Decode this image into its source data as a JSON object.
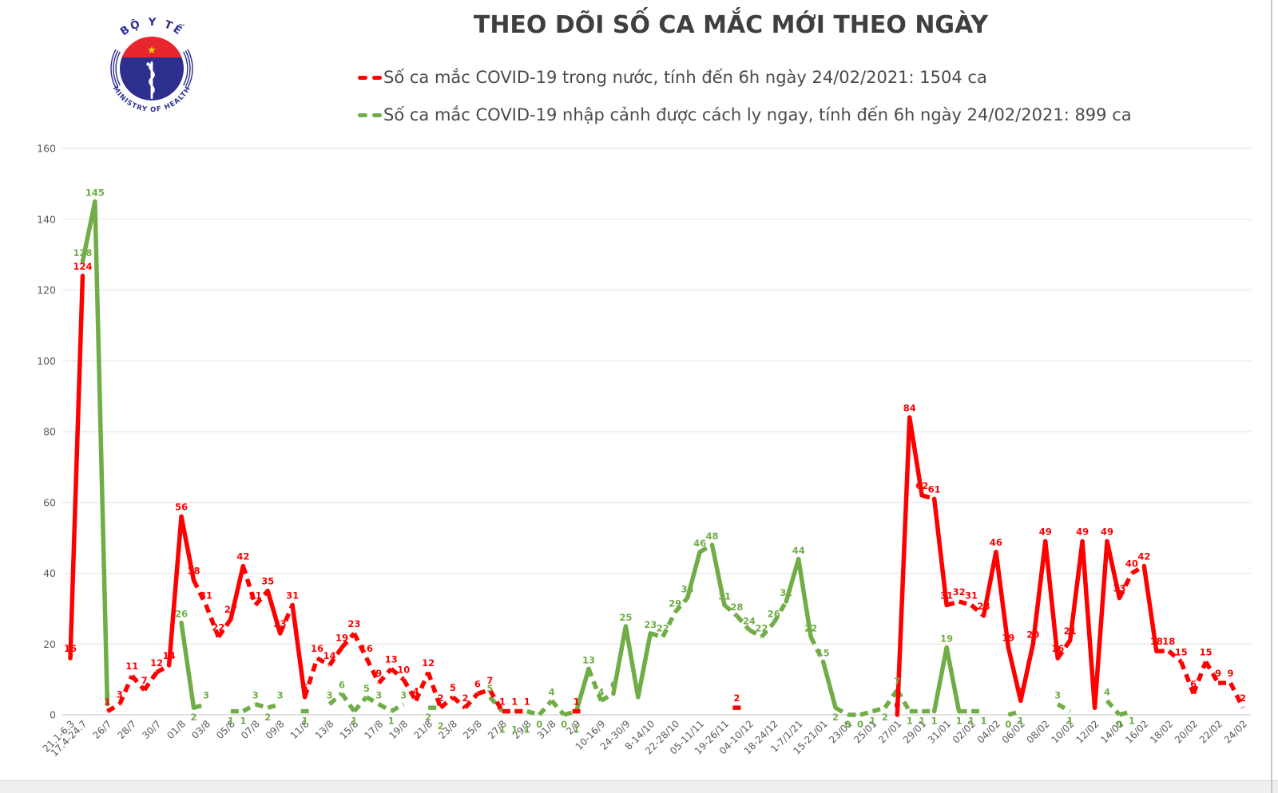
{
  "logo": {
    "top_text": "BỘ Y TẾ",
    "bottom_text": "MINISTRY OF HEALTH"
  },
  "chart_data": {
    "type": "line",
    "title": "THEO DÕI SỐ CA MẮC MỚI THEO NGÀY",
    "ylim": [
      0,
      160
    ],
    "yticks": [
      0,
      20,
      40,
      60,
      80,
      100,
      120,
      140,
      160
    ],
    "grid": true,
    "legend_position": "top-center",
    "categories": [
      "21.1-6.3",
      "17.4-24.7",
      "",
      "26/7",
      "",
      "28/7",
      "",
      "30/7",
      "",
      "01/8",
      "",
      "03/8",
      "",
      "05/8",
      "",
      "07/8",
      "",
      "09/8",
      "",
      "11/8",
      "",
      "13/8",
      "",
      "15/8",
      "",
      "17/8",
      "",
      "19/8",
      "",
      "21/8",
      "",
      "23/8",
      "",
      "25/8",
      "",
      "27/8",
      "",
      "29/8",
      "",
      "31/8",
      "",
      "2/9",
      "",
      "10-16/9",
      "",
      "24-30/9",
      "",
      "8-14/10",
      "",
      "22-28/10",
      "",
      "05-11/11",
      "",
      "19-26/11",
      "",
      "04-10/12",
      "",
      "18-24/12",
      "",
      "1-7/1/21",
      "",
      "15-21/01",
      "",
      "23/01",
      "",
      "25/01",
      "",
      "27/01",
      "",
      "29/01",
      "",
      "31/01",
      "",
      "02/02",
      "",
      "04/02",
      "",
      "06/02",
      "",
      "08/02",
      "",
      "10/02",
      "",
      "12/02",
      "",
      "14/02",
      "",
      "16/02",
      "",
      "18/02",
      "",
      "20/02",
      "",
      "22/02",
      "",
      "24/02"
    ],
    "series": [
      {
        "name": "Số ca mắc COVID-19 trong nước, tính đến 6h ngày 24/02/2021: 1504 ca",
        "color": "#ff0000",
        "values": [
          16,
          124,
          null,
          1,
          3,
          11,
          7,
          12,
          14,
          56,
          38,
          31,
          22,
          27,
          42,
          31,
          35,
          23,
          31,
          5,
          16,
          14,
          19,
          23,
          16,
          9,
          13,
          10,
          4,
          12,
          2,
          5,
          2,
          6,
          7,
          1,
          1,
          1,
          null,
          null,
          null,
          1,
          null,
          null,
          null,
          null,
          null,
          null,
          null,
          null,
          null,
          null,
          null,
          null,
          2,
          null,
          null,
          null,
          null,
          null,
          null,
          null,
          null,
          null,
          null,
          null,
          null,
          0,
          84,
          62,
          61,
          31,
          32,
          31,
          28,
          46,
          19,
          4,
          20,
          49,
          16,
          21,
          49,
          2,
          49,
          33,
          40,
          42,
          18,
          18,
          15,
          6,
          15,
          9,
          9,
          2
        ]
      },
      {
        "name": "Số ca mắc COVID-19 nhập cảnh được cách ly ngay, tính đến 6h ngày 24/02/2021: 899 ca",
        "color": "#70ad47",
        "values": [
          null,
          128,
          145,
          3,
          null,
          null,
          null,
          null,
          null,
          26,
          2,
          3,
          null,
          1,
          1,
          3,
          2,
          3,
          null,
          1,
          null,
          3,
          6,
          1,
          5,
          3,
          1,
          3,
          null,
          2,
          2,
          null,
          null,
          null,
          5,
          1,
          1,
          1,
          0,
          4,
          0,
          1,
          13,
          4,
          6,
          25,
          5,
          23,
          22,
          29,
          33,
          46,
          48,
          31,
          28,
          24,
          22,
          26,
          32,
          44,
          22,
          15,
          2,
          0,
          0,
          1,
          2,
          7,
          1,
          1,
          1,
          19,
          1,
          1,
          1,
          null,
          0,
          1,
          null,
          null,
          3,
          1,
          null,
          null,
          4,
          0,
          1,
          null,
          null,
          null,
          null,
          null,
          null,
          null,
          null,
          null
        ]
      }
    ],
    "axis_label_color": "#595959",
    "gridline_color": "#e2e2e2"
  }
}
